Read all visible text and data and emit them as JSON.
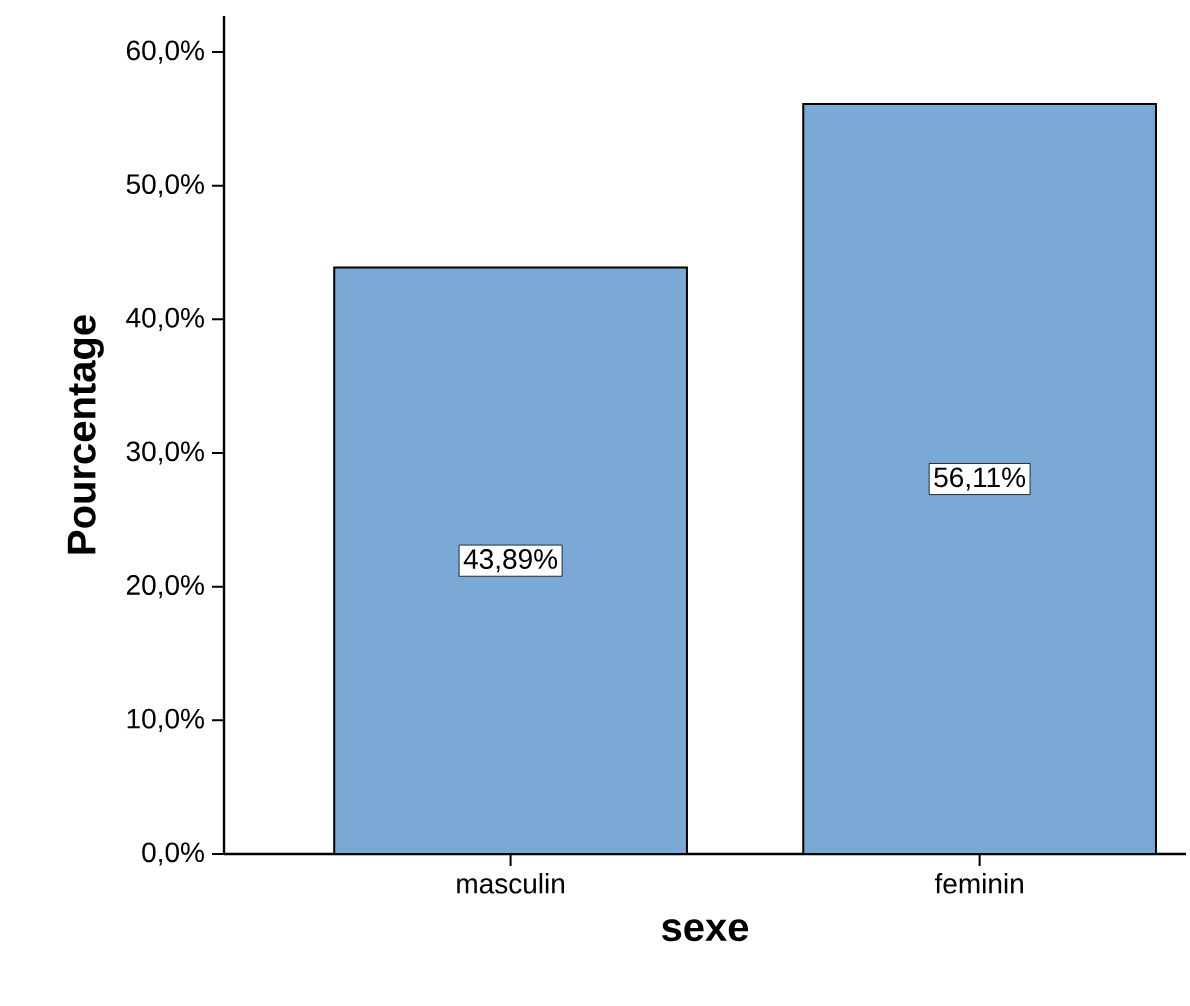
{
  "chart_data": {
    "type": "bar",
    "xlabel": "sexe",
    "ylabel": "Pourcentage",
    "categories": [
      "masculin",
      "feminin"
    ],
    "values": [
      43.89,
      56.11
    ],
    "value_labels": [
      "43,89%",
      "56,11%"
    ],
    "color": "#7ba9d6",
    "ylim": [
      0,
      62.7
    ],
    "yticks": [
      {
        "value": 0,
        "label": "0,0%"
      },
      {
        "value": 10,
        "label": "10,0%"
      },
      {
        "value": 20,
        "label": "20,0%"
      },
      {
        "value": 30,
        "label": "30,0%"
      },
      {
        "value": 40,
        "label": "40,0%"
      },
      {
        "value": 50,
        "label": "50,0%"
      },
      {
        "value": 60,
        "label": "60,0%"
      }
    ]
  }
}
